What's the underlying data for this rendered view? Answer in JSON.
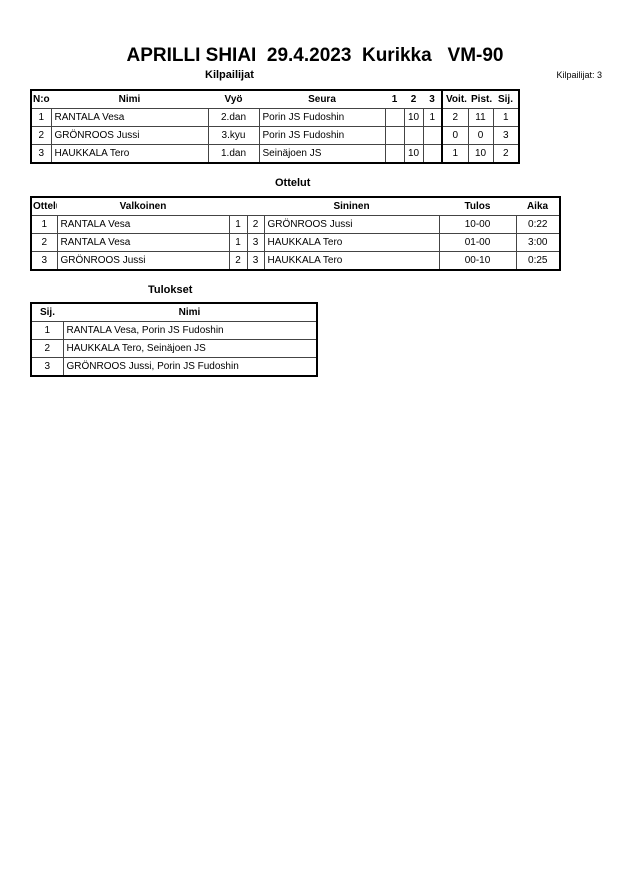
{
  "title": "APRILLI SHIAI  29.4.2023  Kurikka   VM-90",
  "competitors_count": "Kilpailijat: 3",
  "competitors": {
    "heading": "Kilpailijat",
    "columns": [
      "N:o",
      "Nimi",
      "Vyö",
      "Seura",
      "1",
      "2",
      "3",
      "Voit.",
      "Pist.",
      "Sij."
    ],
    "rows": [
      [
        "1",
        "RANTALA Vesa",
        "2.dan",
        "Porin JS Fudoshin",
        "",
        "10",
        "1",
        "2",
        "11",
        "1"
      ],
      [
        "2",
        "GRÖNROOS Jussi",
        "3.kyu",
        "Porin JS Fudoshin",
        "",
        "",
        "",
        "0",
        "0",
        "3"
      ],
      [
        "3",
        "HAUKKALA Tero",
        "1.dan",
        "Seinäjoen JS",
        "",
        "10",
        "",
        "1",
        "10",
        "2"
      ]
    ]
  },
  "matches": {
    "heading": "Ottelut",
    "columns": [
      "Ottelu",
      "Valkoinen",
      "",
      "",
      "Sininen",
      "Tulos",
      "Aika"
    ],
    "rows": [
      [
        "1",
        "RANTALA Vesa",
        "1",
        "2",
        "GRÖNROOS Jussi",
        "10-00",
        "0:22"
      ],
      [
        "2",
        "RANTALA Vesa",
        "1",
        "3",
        "HAUKKALA Tero",
        "01-00",
        "3:00"
      ],
      [
        "3",
        "GRÖNROOS Jussi",
        "2",
        "3",
        "HAUKKALA Tero",
        "00-10",
        "0:25"
      ]
    ]
  },
  "results": {
    "heading": "Tulokset",
    "columns": [
      "Sij.",
      "Nimi"
    ],
    "rows": [
      [
        "1",
        "RANTALA Vesa, Porin JS Fudoshin"
      ],
      [
        "2",
        "HAUKKALA Tero, Seinäjoen JS"
      ],
      [
        "3",
        "GRÖNROOS Jussi, Porin JS Fudoshin"
      ]
    ]
  }
}
